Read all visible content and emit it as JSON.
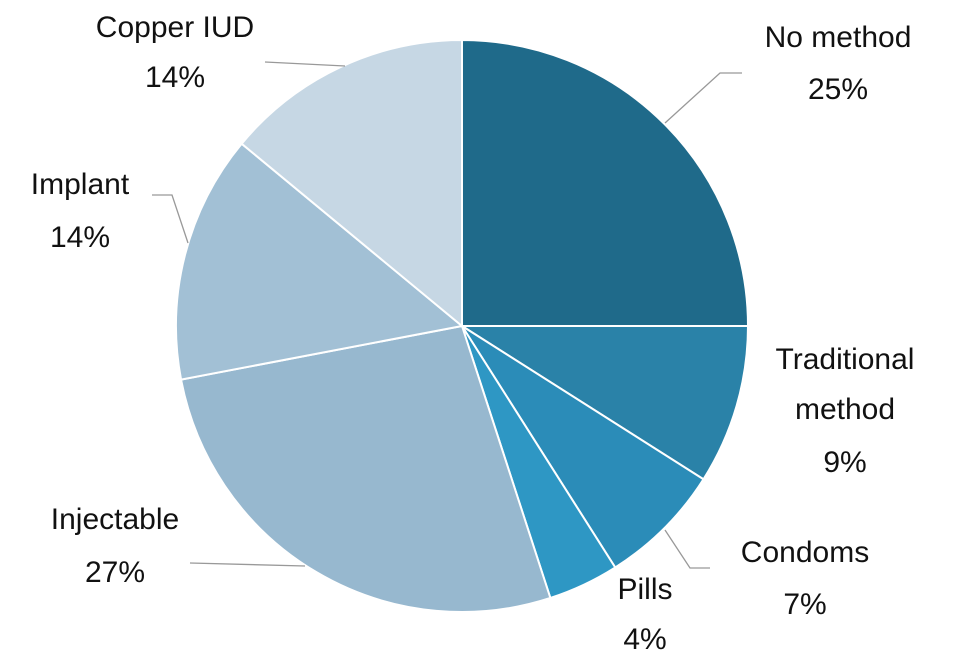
{
  "chart_data": {
    "type": "pie",
    "categories": [
      "No method",
      "Traditional method",
      "Condoms",
      "Pills",
      "Injectable",
      "Implant",
      "Copper IUD"
    ],
    "values": [
      25,
      9,
      7,
      4,
      27,
      14,
      14
    ],
    "value_labels": [
      "25%",
      "9%",
      "7%",
      "4%",
      "27%",
      "14%",
      "14%"
    ],
    "colors": [
      "#1f6a8a",
      "#2a82a8",
      "#2b8cb8",
      "#2e97c4",
      "#97b8cf",
      "#a2c0d5",
      "#c6d7e4"
    ]
  }
}
